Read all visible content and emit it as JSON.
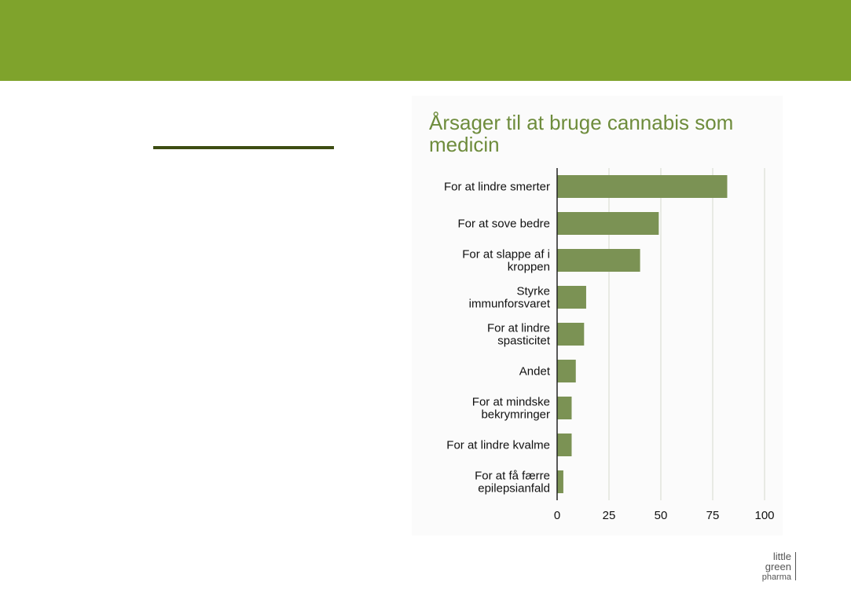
{
  "colors": {
    "banner": "#7fa32c",
    "accent_rule": "#3d4d12",
    "title": "#6e8c3c",
    "bar": "#7b9254",
    "grid": "#d6d9cc",
    "axis": "#222222"
  },
  "logo": {
    "line1": "little",
    "line2": "green",
    "line3": "pharma"
  },
  "chart_data": {
    "type": "bar",
    "orientation": "horizontal",
    "title": "Årsager til at bruge cannabis som medicin",
    "categories": [
      [
        "For at lindre smerter"
      ],
      [
        "For at sove bedre"
      ],
      [
        "For at slappe af i",
        "kroppen"
      ],
      [
        "Styrke",
        "immunforsvaret"
      ],
      [
        "For at lindre",
        "spasticitet"
      ],
      [
        "Andet"
      ],
      [
        "For at mindske",
        "bekrymringer"
      ],
      [
        "For at lindre kvalme"
      ],
      [
        "For at få færre",
        "epilepsianfald"
      ]
    ],
    "values": [
      82,
      49,
      40,
      14,
      13,
      9,
      7,
      7,
      3
    ],
    "xlim": [
      0,
      100
    ],
    "xticks": [
      "0",
      "25",
      "50",
      "75",
      "100"
    ],
    "grid": true,
    "legend": "none"
  }
}
